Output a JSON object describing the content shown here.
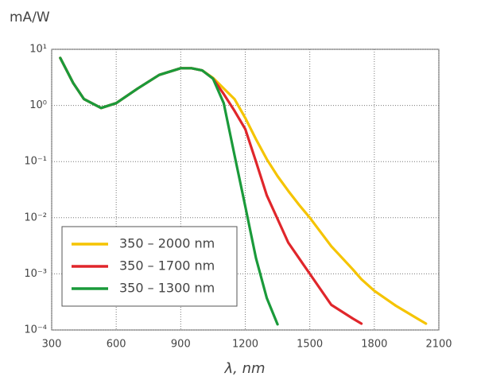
{
  "chart_data": {
    "type": "line",
    "y_label": "mA/W",
    "x_label": "λ, nm",
    "log_y": true,
    "grid": true,
    "legend_position": "lower left",
    "x": [
      340,
      400,
      450,
      530,
      600,
      700,
      800,
      900,
      950,
      1000,
      1050,
      1100,
      1150,
      1200,
      1250,
      1300,
      1350,
      1400,
      1450,
      1500,
      1600,
      1700,
      1740,
      1800,
      1900,
      2000,
      2040
    ],
    "series": [
      {
        "name": "350 – 2000 nm",
        "color": "#f5c400",
        "values": [
          7,
          2.5,
          1.3,
          0.9,
          1.1,
          2,
          3.5,
          4.6,
          4.6,
          4.2,
          3.1,
          2.0,
          1.3,
          0.6,
          0.25,
          0.11,
          0.055,
          0.03,
          0.017,
          0.01,
          0.0031,
          0.0012,
          0.0008,
          0.0005,
          0.00027,
          0.00016,
          0.00013
        ]
      },
      {
        "name": "350 – 1700 nm",
        "color": "#e0262b",
        "values": [
          7,
          2.5,
          1.3,
          0.9,
          1.1,
          2,
          3.5,
          4.6,
          4.6,
          4.2,
          3.0,
          1.6,
          0.8,
          0.38,
          0.1,
          0.025,
          0.0095,
          0.0036,
          0.0019,
          0.001,
          0.00028,
          0.00016,
          0.00013,
          null,
          null,
          null,
          null
        ]
      },
      {
        "name": "350 – 1300 nm",
        "color": "#1a9a3a",
        "values": [
          7,
          2.5,
          1.3,
          0.9,
          1.1,
          2,
          3.5,
          4.6,
          4.6,
          4.2,
          3.0,
          1.1,
          0.13,
          0.016,
          0.0019,
          0.00037,
          0.000126,
          null,
          null,
          null,
          null,
          null,
          null,
          null,
          null,
          null,
          null
        ]
      }
    ],
    "xlim": [
      300,
      2100
    ],
    "xticks": [
      300,
      600,
      900,
      1200,
      1500,
      1800,
      2100
    ],
    "ylim": [
      0.0001,
      10
    ],
    "yticks": [
      {
        "value": 10,
        "label": "10¹"
      },
      {
        "value": 1,
        "label": "10⁰"
      },
      {
        "value": 0.1,
        "label": "10⁻¹"
      },
      {
        "value": 0.01,
        "label": "10⁻²"
      },
      {
        "value": 0.001,
        "label": "10⁻³"
      },
      {
        "value": 0.0001,
        "label": "10⁻⁴"
      }
    ]
  }
}
